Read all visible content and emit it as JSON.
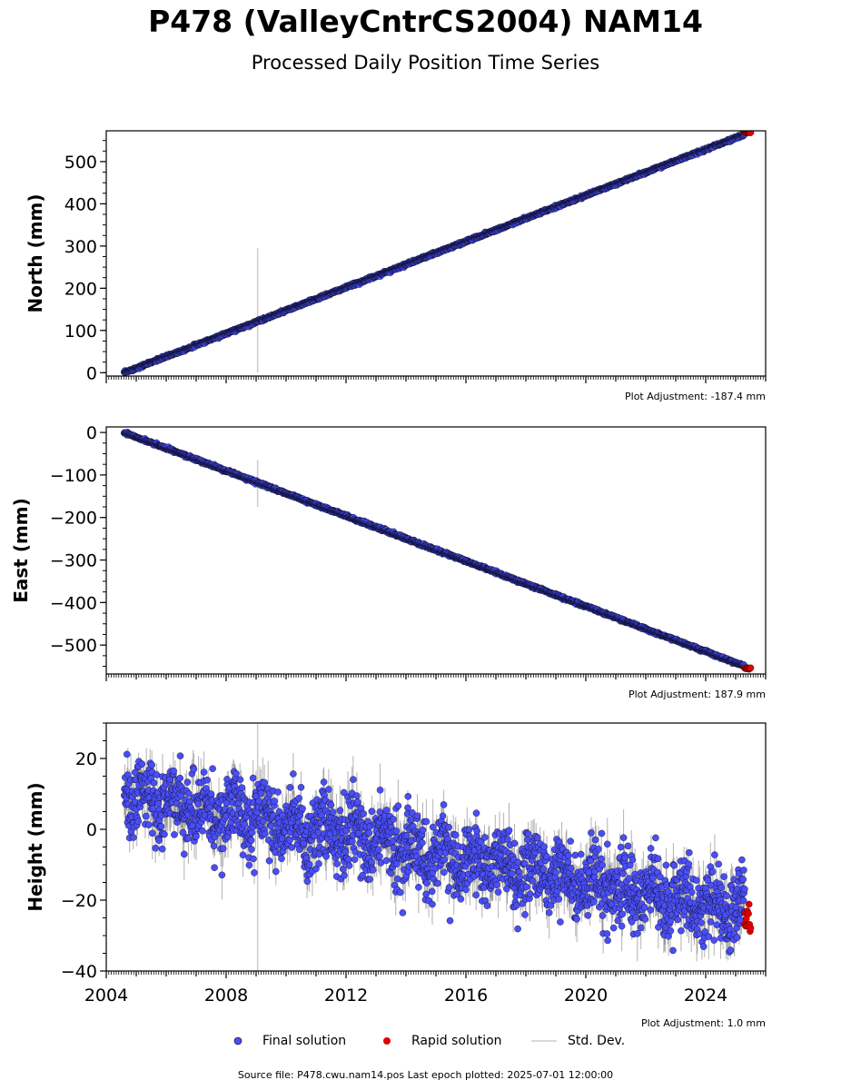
{
  "title": "P478 (ValleyCntrCS2004) NAM14",
  "subtitle": "Processed Daily Position Time Series",
  "source_line": "Source file: P478.cwu.nam14.pos  Last epoch plotted: 2025-07-01 12:00:00",
  "legend": {
    "final": "Final solution",
    "rapid": "Rapid solution",
    "std": "Std. Dev."
  },
  "colors": {
    "final": "#4a4ef5",
    "final_edge": "#000000",
    "rapid": "#e00000",
    "std": "#cccccc",
    "std_dark": "#555555"
  },
  "chart_data": [
    {
      "type": "scatter",
      "ylabel": "North (mm)",
      "adjustment": "Plot Adjustment: -187.4 mm",
      "xlim": [
        2004,
        2026
      ],
      "ylim": [
        -8,
        573
      ],
      "yticks": [
        0,
        100,
        200,
        300,
        400,
        500
      ],
      "ytick_labels": [
        "0",
        "100",
        "200",
        "300",
        "400",
        "500"
      ],
      "trend": {
        "start": [
          2004.6,
          0
        ],
        "end": [
          2025.5,
          570
        ]
      },
      "scatter_sd": 1.5,
      "std_dev": 2,
      "outlier_bar": {
        "x": 2009.05,
        "y0": 0,
        "y1": 295
      },
      "rapid": {
        "x0": 2025.3,
        "x1": 2025.5,
        "y0": 567,
        "y1": 570
      }
    },
    {
      "type": "scatter",
      "ylabel": "East (mm)",
      "adjustment": "Plot Adjustment: 187.9 mm",
      "xlim": [
        2004,
        2026
      ],
      "ylim": [
        -568,
        13
      ],
      "yticks": [
        0,
        -100,
        -200,
        -300,
        -400,
        -500
      ],
      "ytick_labels": [
        "0",
        "−100",
        "−200",
        "−300",
        "−400",
        "−500"
      ],
      "trend": {
        "start": [
          2004.6,
          0
        ],
        "end": [
          2025.5,
          -555
        ]
      },
      "scatter_sd": 1.5,
      "std_dev": 2,
      "outlier_bar": {
        "x": 2009.05,
        "y0": -175,
        "y1": -65
      },
      "rapid": {
        "x0": 2025.3,
        "x1": 2025.5,
        "y0": -553,
        "y1": -557
      }
    },
    {
      "type": "scatter",
      "ylabel": "Height (mm)",
      "adjustment": "Plot Adjustment: 1.0 mm",
      "xlim": [
        2004,
        2026
      ],
      "ylim": [
        -40,
        30
      ],
      "yticks": [
        -40,
        -20,
        0,
        20
      ],
      "ytick_labels": [
        "−40",
        "−20",
        "0",
        "20"
      ],
      "xticks": [
        2004,
        2008,
        2012,
        2016,
        2020,
        2024
      ],
      "xtick_labels": [
        "2004",
        "2008",
        "2012",
        "2016",
        "2020",
        "2024"
      ],
      "trend": {
        "start": [
          2004.6,
          10
        ],
        "end": [
          2025.5,
          -24
        ]
      },
      "scatter_sd": 5,
      "std_dev": 5,
      "outlier_bar": {
        "x": 2009.05,
        "y0": -40,
        "y1": 30
      },
      "rapid": {
        "x0": 2025.3,
        "x1": 2025.5,
        "y0": -21,
        "y1": -29
      }
    }
  ]
}
